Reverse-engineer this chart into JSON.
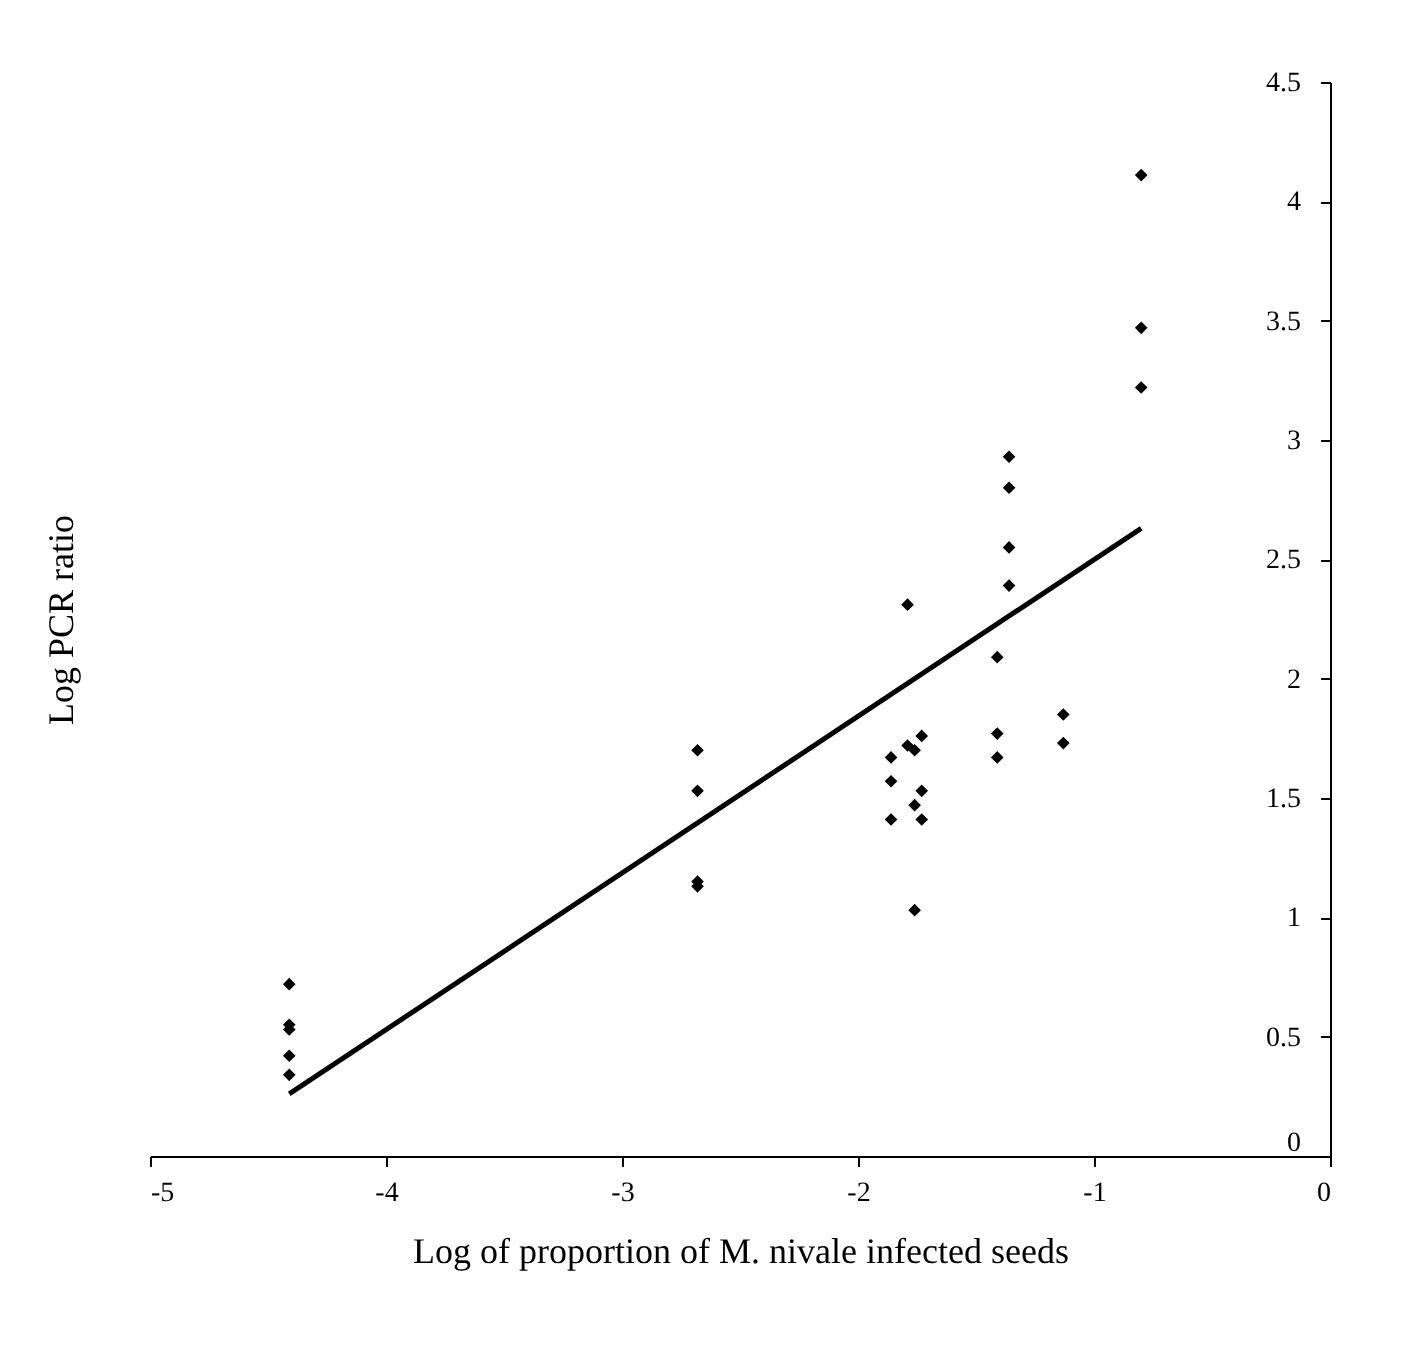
{
  "chart_data": {
    "type": "scatter",
    "xlabel": "Log of proportion of M. nivale  infected seeds",
    "ylabel": "Log PCR ratio",
    "xlim": [
      -5,
      0
    ],
    "xticks": [
      -5,
      -4,
      -3,
      -2,
      -1,
      0
    ],
    "ylim": [
      0,
      4.5
    ],
    "yticks": [
      0,
      0.5,
      1,
      1.5,
      2,
      2.5,
      3,
      3.5,
      4,
      4.5
    ],
    "grid": false,
    "marker": "diamond",
    "series": [
      {
        "type": "scatter",
        "color": "#000000",
        "x": [
          -4.41,
          -4.41,
          -4.41,
          -4.41,
          -4.41,
          -2.68,
          -2.68,
          -2.68,
          -2.68,
          -1.86,
          -1.86,
          -1.86,
          -1.79,
          -1.79,
          -1.76,
          -1.76,
          -1.76,
          -1.73,
          -1.73,
          -1.73,
          -1.41,
          -1.41,
          -1.41,
          -1.36,
          -1.36,
          -1.36,
          -1.36,
          -1.13,
          -1.13,
          -0.8,
          -0.8,
          -0.8
        ],
        "values": [
          0.72,
          0.55,
          0.53,
          0.42,
          0.34,
          1.7,
          1.53,
          1.15,
          1.13,
          1.67,
          1.57,
          1.41,
          2.31,
          1.72,
          1.7,
          1.47,
          1.03,
          1.76,
          1.53,
          1.41,
          2.09,
          1.77,
          1.67,
          2.93,
          2.8,
          2.55,
          2.39,
          1.85,
          1.73,
          4.11,
          3.47,
          3.22
        ]
      },
      {
        "type": "line",
        "color": "#000000",
        "marker": "none",
        "x": [
          -4.41,
          -0.8
        ],
        "values": [
          0.26,
          2.63
        ]
      }
    ]
  }
}
